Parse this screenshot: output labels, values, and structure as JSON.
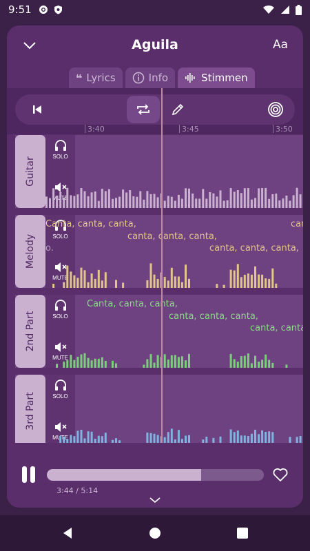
{
  "status_bar": {
    "time": "9:51"
  },
  "header": {
    "title": "Aguila",
    "font_button": "Aa"
  },
  "tabs": [
    {
      "label": "Lyrics",
      "icon": "quote-icon",
      "active": false
    },
    {
      "label": "Info",
      "icon": "info-icon",
      "active": false
    },
    {
      "label": "Stimmen",
      "icon": "waveform-icon",
      "active": true
    }
  ],
  "timeline": {
    "ticks": [
      "3:40",
      "3:45",
      "3:50"
    ]
  },
  "tracks": [
    {
      "name": "Guitar",
      "solo_label": "SOLO",
      "mute_label": "MUTE",
      "color": "#c9b1cf",
      "lyrics": []
    },
    {
      "name": "Melody",
      "solo_label": "SOLO",
      "mute_label": "MUTE",
      "color": "#e2c58a",
      "lyrics": [
        "Canta, canta, canta,",
        "canta, canta, canta,",
        "canta, canta, canta,",
        "can",
        "o."
      ]
    },
    {
      "name": "2nd Part",
      "solo_label": "SOLO",
      "mute_label": "MUTE",
      "color": "#7ccf7a",
      "lyrics": [
        "Canta, canta, canta,",
        "canta, canta, canta,",
        "canta, canta"
      ]
    },
    {
      "name": "3rd Part",
      "solo_label": "SOLO",
      "mute_label": "MUTE",
      "color": "#7fb4e0",
      "lyrics": []
    }
  ],
  "player": {
    "current": "3:44",
    "total": "5:14",
    "time_text": "3:44 / 5:14",
    "progress": 0.71
  }
}
